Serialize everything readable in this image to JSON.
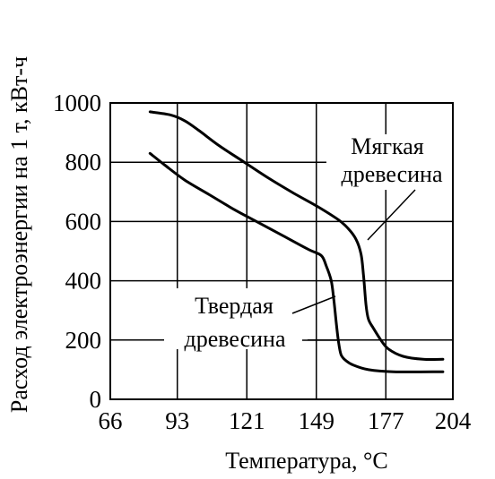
{
  "chart_data": {
    "type": "line",
    "xlabel": "Температура, °C",
    "ylabel": "Расход электроэнергии на 1 т, кВт-ч",
    "xlim": [
      66,
      204
    ],
    "ylim": [
      0,
      1000
    ],
    "xticks": [
      66,
      93,
      121,
      149,
      177,
      204
    ],
    "yticks": [
      0,
      200,
      400,
      600,
      800,
      1000
    ],
    "grid": true,
    "series": [
      {
        "name": "Мягкая древесина",
        "line1": "Мягкая",
        "line2": "древесина",
        "points": [
          [
            82,
            970
          ],
          [
            90,
            960
          ],
          [
            96,
            940
          ],
          [
            102,
            905
          ],
          [
            110,
            855
          ],
          [
            120,
            800
          ],
          [
            130,
            745
          ],
          [
            140,
            695
          ],
          [
            150,
            648
          ],
          [
            158,
            605
          ],
          [
            162,
            575
          ],
          [
            165,
            540
          ],
          [
            167,
            490
          ],
          [
            168,
            420
          ],
          [
            169,
            320
          ],
          [
            170,
            270
          ],
          [
            172,
            240
          ],
          [
            175,
            200
          ],
          [
            178,
            170
          ],
          [
            184,
            145
          ],
          [
            192,
            135
          ],
          [
            200,
            135
          ]
        ]
      },
      {
        "name": "Твердая древесина",
        "line1": "Твердая",
        "line2": "древесина",
        "points": [
          [
            82,
            830
          ],
          [
            88,
            790
          ],
          [
            96,
            740
          ],
          [
            106,
            690
          ],
          [
            116,
            640
          ],
          [
            126,
            595
          ],
          [
            136,
            550
          ],
          [
            146,
            505
          ],
          [
            151,
            485
          ],
          [
            153,
            450
          ],
          [
            155,
            400
          ],
          [
            156,
            340
          ],
          [
            157,
            260
          ],
          [
            158,
            190
          ],
          [
            159,
            150
          ],
          [
            161,
            130
          ],
          [
            164,
            115
          ],
          [
            170,
            100
          ],
          [
            180,
            93
          ],
          [
            200,
            93
          ]
        ]
      }
    ]
  }
}
